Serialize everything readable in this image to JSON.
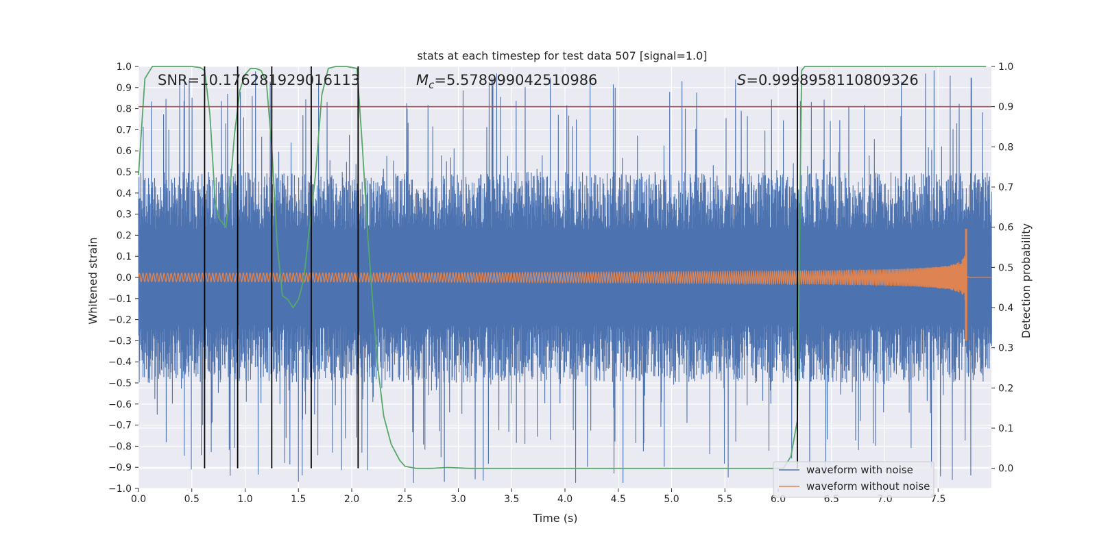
{
  "chart_data": {
    "type": "line",
    "title": "stats at each timestep for test data 507 [signal=1.0]",
    "xlabel": "Time (s)",
    "ylabel_left": "Whitened strain",
    "ylabel_right": "Detection probability",
    "xlim": [
      0.0,
      8.0
    ],
    "ylim_left": [
      -1.0,
      1.0
    ],
    "ylim_right": [
      -0.05,
      1.0
    ],
    "x_ticks": [
      "0.0",
      "0.5",
      "1.0",
      "1.5",
      "2.0",
      "2.5",
      "3.0",
      "3.5",
      "4.0",
      "4.5",
      "5.0",
      "5.5",
      "6.0",
      "6.5",
      "7.0",
      "7.5"
    ],
    "y_ticks_left": [
      "−1.0",
      "−0.9",
      "−0.8",
      "−0.7",
      "−0.6",
      "−0.5",
      "−0.4",
      "−0.3",
      "−0.2",
      "−0.1",
      "0.0",
      "0.1",
      "0.2",
      "0.3",
      "0.4",
      "0.5",
      "0.6",
      "0.7",
      "0.8",
      "0.9",
      "1.0"
    ],
    "y_ticks_right": [
      "0.0",
      "0.1",
      "0.2",
      "0.3",
      "0.4",
      "0.5",
      "0.6",
      "0.7",
      "0.8",
      "0.9",
      "1.0"
    ],
    "annotations": {
      "snr": "SNR=10.176281929016113",
      "mc_symbol": "M",
      "mc_sub": "c",
      "mc_value": "=5.578999042510986",
      "s_symbol": "S",
      "s_value": "=0.9998958110809326"
    },
    "threshold": {
      "value": 0.9,
      "color": "#c44e52"
    },
    "vertical_lines_x": [
      0.62,
      0.93,
      1.25,
      1.62,
      2.06,
      6.18
    ],
    "series": [
      {
        "name": "waveform with noise",
        "color": "#4c72b0",
        "axis": "left",
        "noise_envelope": 0.5,
        "max_abs": 1.0
      },
      {
        "name": "waveform without noise",
        "color": "#dd8452",
        "axis": "left",
        "chirp_end_time": 7.77,
        "amplitude_start": 0.02,
        "amplitude_peak": 0.23,
        "amplitude_trough": -0.3
      },
      {
        "name": "detection probability",
        "color": "#55a868",
        "axis": "right",
        "x": [
          0.0,
          0.03,
          0.06,
          0.13,
          0.2,
          0.3,
          0.4,
          0.5,
          0.58,
          0.62,
          0.67,
          0.72,
          0.76,
          0.82,
          0.86,
          0.9,
          0.95,
          1.0,
          1.05,
          1.1,
          1.15,
          1.2,
          1.25,
          1.3,
          1.35,
          1.4,
          1.45,
          1.5,
          1.55,
          1.6,
          1.66,
          1.72,
          1.78,
          1.85,
          1.95,
          2.05,
          2.1,
          2.15,
          2.2,
          2.25,
          2.3,
          2.37,
          2.45,
          2.5,
          2.6,
          2.75,
          2.9,
          3.1,
          3.5,
          4.0,
          5.0,
          5.8,
          6.05,
          6.12,
          6.18,
          6.22,
          6.25,
          7.5,
          7.95
        ],
        "y": [
          0.73,
          0.85,
          0.97,
          1.0,
          1.0,
          1.0,
          1.0,
          1.0,
          0.997,
          0.99,
          0.88,
          0.66,
          0.62,
          0.6,
          0.7,
          0.83,
          0.94,
          0.98,
          0.995,
          0.995,
          0.99,
          0.96,
          0.8,
          0.56,
          0.43,
          0.42,
          0.4,
          0.42,
          0.47,
          0.59,
          0.73,
          0.93,
          0.995,
          1.0,
          1.0,
          0.995,
          0.8,
          0.58,
          0.4,
          0.24,
          0.13,
          0.06,
          0.02,
          0.005,
          0.0,
          0.0,
          0.002,
          0.0,
          0.0,
          0.0,
          0.0,
          0.0,
          0.0,
          0.03,
          0.12,
          0.99,
          1.0,
          1.0,
          1.0
        ]
      }
    ],
    "legend": {
      "position": "bottom-right",
      "items": [
        {
          "label": "waveform with noise",
          "color": "#4c72b0"
        },
        {
          "label": "waveform without noise",
          "color": "#dd8452"
        }
      ]
    },
    "colors": {
      "plot_bg": "#eaeaf2",
      "grid": "#ffffff",
      "vline": "#000000"
    }
  }
}
